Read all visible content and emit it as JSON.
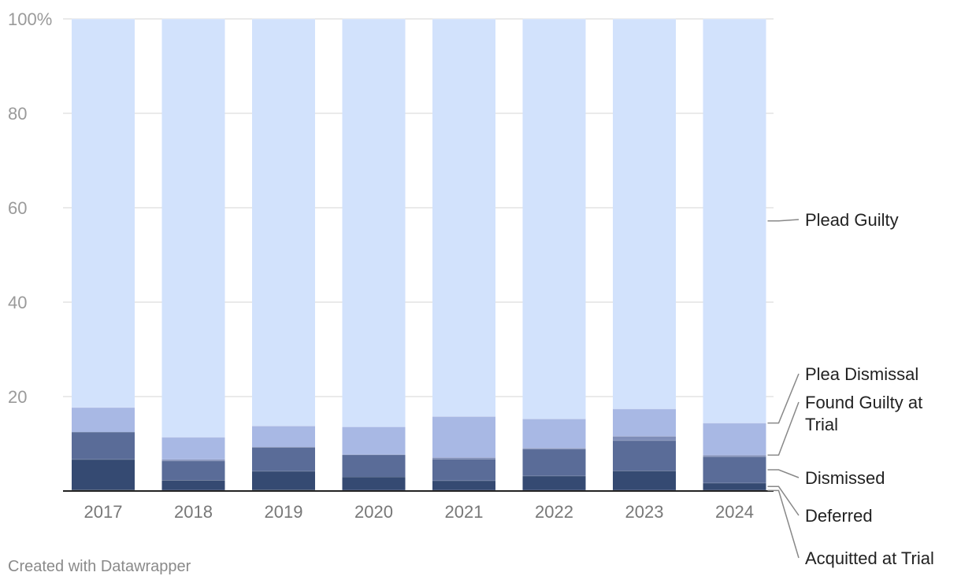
{
  "chart_data": {
    "type": "bar",
    "stacked": true,
    "categories": [
      "2017",
      "2018",
      "2019",
      "2020",
      "2021",
      "2022",
      "2023",
      "2024"
    ],
    "series": [
      {
        "name": "Acquitted at Trial",
        "color": "#1f2f4f",
        "values": [
          0.3,
          0.2,
          0.3,
          0.2,
          0.2,
          0.2,
          0.2,
          0.2
        ]
      },
      {
        "name": "Deferred",
        "color": "#354a72",
        "values": [
          6.4,
          2.1,
          3.9,
          2.8,
          2.0,
          3.0,
          4.1,
          1.5
        ]
      },
      {
        "name": "Dismissed",
        "color": "#5a6c98",
        "values": [
          5.8,
          4.1,
          5.1,
          4.7,
          4.6,
          5.7,
          6.4,
          5.6
        ]
      },
      {
        "name": "Found Guilty at Trial",
        "color": "#7f8db8",
        "values": [
          0.0,
          0.3,
          0.0,
          0.0,
          0.3,
          0.2,
          0.9,
          0.3
        ]
      },
      {
        "name": "Plea Dismissal",
        "color": "#a8b8e4",
        "values": [
          5.2,
          4.7,
          4.5,
          5.9,
          8.7,
          6.2,
          5.8,
          6.8
        ]
      },
      {
        "name": "Plead Guilty",
        "color": "#d2e2fc",
        "values": [
          82.3,
          88.6,
          86.2,
          86.4,
          84.2,
          84.7,
          82.6,
          85.6
        ]
      }
    ],
    "yticks": [
      "100%",
      "80",
      "60",
      "40",
      "20"
    ],
    "ytick_values": [
      100,
      80,
      60,
      40,
      20
    ],
    "ylim": [
      0,
      100
    ],
    "grid": true,
    "legend_position": "right, inline labels"
  },
  "footer": {
    "credit": "Created with Datawrapper"
  }
}
